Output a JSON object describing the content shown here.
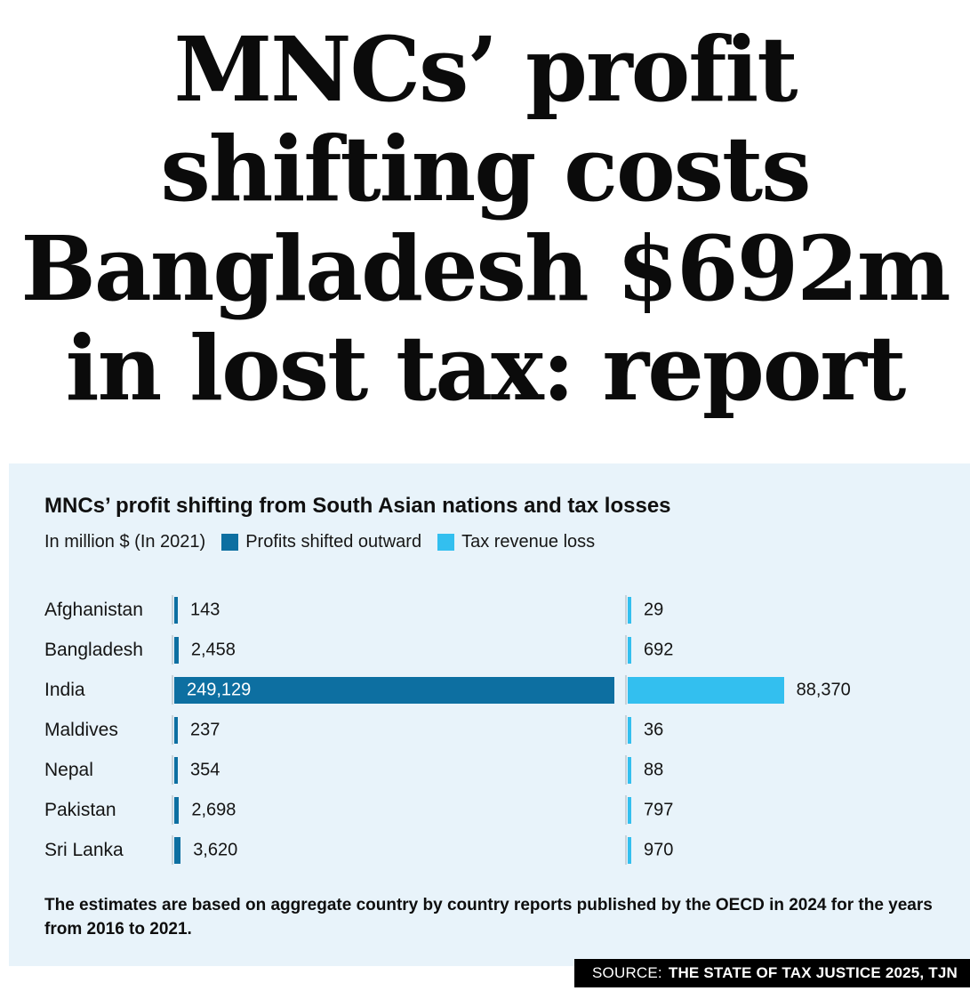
{
  "headline": {
    "lines": [
      "MNCs’ profit",
      "shifting costs",
      "Bangladesh $692m",
      "in lost tax: report"
    ]
  },
  "chart": {
    "title": "MNCs’ profit shifting from South Asian nations and tax losses",
    "unit_label": "In million $ (In 2021)",
    "legend": [
      {
        "label": "Profits shifted outward",
        "color": "#0d6fa1"
      },
      {
        "label": "Tax revenue loss",
        "color": "#33bfef"
      }
    ],
    "footnote": "The estimates are based on aggregate country by country reports published by the OECD in 2024 for the years from 2016 to 2021."
  },
  "chart_data": {
    "type": "bar",
    "orientation": "horizontal",
    "title": "MNCs’ profit shifting from South Asian nations and tax losses",
    "unit": "In million $ (In 2021)",
    "categories": [
      "Afghanistan",
      "Bangladesh",
      "India",
      "Maldives",
      "Nepal",
      "Pakistan",
      "Sri Lanka"
    ],
    "series": [
      {
        "name": "Profits shifted outward",
        "color": "#0d6fa1",
        "values": [
          143,
          2458,
          249129,
          237,
          354,
          2698,
          3620
        ],
        "labels": [
          "143",
          "2,458",
          "249,129",
          "237",
          "354",
          "2,698",
          "3,620"
        ]
      },
      {
        "name": "Tax revenue loss",
        "color": "#33bfef",
        "values": [
          29,
          692,
          88370,
          36,
          88,
          797,
          970
        ],
        "labels": [
          "29",
          "692",
          "88,370",
          "36",
          "88",
          "797",
          "970"
        ]
      }
    ],
    "xmax": 249129,
    "grid": false,
    "legend_position": "top"
  },
  "source": {
    "prefix": "SOURCE:",
    "text": "THE STATE OF TAX JUSTICE 2025, TJN"
  },
  "colors": {
    "dark_blue": "#0d6fa1",
    "light_blue": "#33bfef",
    "panel_background": "#e8f3fa",
    "source_bar_background": "#000000"
  }
}
